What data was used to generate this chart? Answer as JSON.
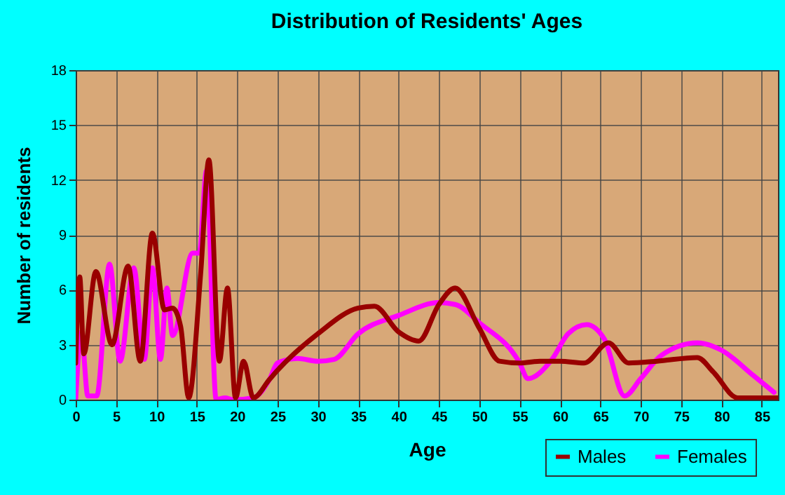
{
  "chart_data": {
    "type": "line",
    "title": "Distribution of Residents' Ages",
    "xlabel": "Age",
    "ylabel": "Number of residents",
    "xlim": [
      0,
      87
    ],
    "ylim": [
      0,
      18
    ],
    "xticks": [
      0,
      5,
      10,
      15,
      20,
      25,
      30,
      35,
      40,
      45,
      50,
      55,
      60,
      65,
      70,
      75,
      80,
      85
    ],
    "yticks": [
      0,
      3,
      6,
      9,
      12,
      15,
      18
    ],
    "grid": true,
    "legend": "bottom right",
    "series": [
      {
        "name": "Males",
        "color": "#990000",
        "x": [
          0,
          0.5,
          1,
          2.5,
          4.5,
          6.5,
          8,
          9.5,
          11,
          12,
          13,
          14,
          15.5,
          16.5,
          17.8,
          18.8,
          19.8,
          20.8,
          22,
          24,
          25,
          30,
          35,
          37,
          40,
          42.5,
          45,
          47,
          50,
          52.5,
          55,
          57.5,
          60,
          63,
          66,
          68.5,
          72,
          77,
          79,
          82,
          85,
          87
        ],
        "values": [
          2,
          6.7,
          2.5,
          7,
          3,
          7.3,
          2.1,
          9.1,
          4.9,
          5,
          4,
          0.1,
          7,
          13.1,
          2.1,
          6.1,
          0.1,
          2.1,
          0.1,
          1.1,
          1.6,
          3.6,
          5,
          5.1,
          3.7,
          3.2,
          5.2,
          6.1,
          3.9,
          2.1,
          2,
          2.1,
          2.1,
          2,
          3.1,
          2,
          2.1,
          2.3,
          1.5,
          0.1,
          0.1,
          0.1
        ]
      },
      {
        "name": "Females",
        "color": "#ff00ff",
        "x": [
          0,
          0.7,
          1.5,
          2.6,
          4.2,
          5.5,
          7.2,
          8.5,
          9.5,
          10.5,
          11.3,
          12,
          14.5,
          15.3,
          16.2,
          17.4,
          18.5,
          19.5,
          22,
          24,
          25,
          27.5,
          30,
          32,
          35,
          40,
          45,
          47,
          50,
          55,
          56,
          59,
          61,
          63.3,
          65.5,
          68,
          70,
          72.5,
          77,
          80,
          84,
          86.5
        ],
        "values": [
          0,
          3.7,
          0.2,
          0.2,
          7.4,
          2.1,
          7.2,
          2.2,
          7.2,
          2.2,
          6.1,
          3.5,
          8,
          8,
          12.5,
          0,
          0.1,
          0,
          0.1,
          1.1,
          2,
          2.25,
          2.1,
          2.2,
          3.6,
          4.6,
          5.3,
          5.2,
          4.2,
          2,
          1.15,
          2.2,
          3.6,
          4.1,
          3.3,
          0.2,
          1.15,
          2.4,
          3.1,
          2.7,
          1.3,
          0.4
        ]
      }
    ]
  }
}
